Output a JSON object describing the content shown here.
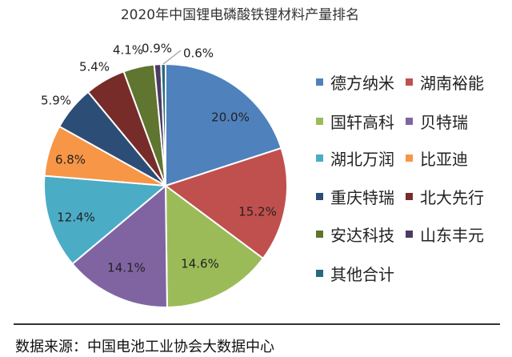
{
  "chart_data": {
    "type": "pie",
    "title": "2020年中国锂电磷酸铁锂材料产量排名",
    "categories": [
      "德方纳米",
      "湖南裕能",
      "国轩高科",
      "贝特瑞",
      "湖北万润",
      "比亚迪",
      "重庆特瑞",
      "北大先行",
      "安达科技",
      "山东丰元",
      "其他合计"
    ],
    "values": [
      20.0,
      15.2,
      14.6,
      14.1,
      12.4,
      6.8,
      5.9,
      5.4,
      4.1,
      0.9,
      0.6
    ],
    "data_labels": [
      "20.0%",
      "15.2%",
      "14.6%",
      "14.1%",
      "12.4%",
      "6.8%",
      "5.9%",
      "5.4%",
      "4.1%",
      "0.9%",
      "0.6%"
    ],
    "colors": [
      "#4f81bd",
      "#c0504d",
      "#9bbb59",
      "#8064a2",
      "#4bacc6",
      "#f79646",
      "#2c4d75",
      "#772c2a",
      "#5f7530",
      "#4d3b62",
      "#276a7c"
    ],
    "start": "top, clockwise",
    "legend_position": "right"
  },
  "source": "数据来源：中国电池工业协会大数据中心"
}
